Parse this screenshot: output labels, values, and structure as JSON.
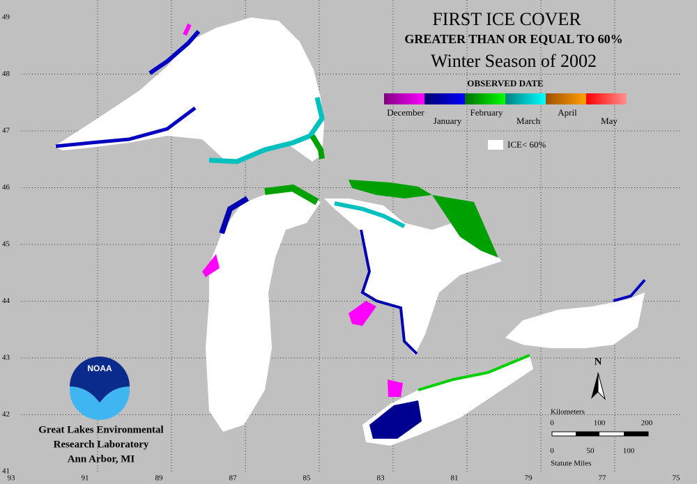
{
  "title": {
    "line1": "FIRST ICE COVER",
    "line2": "GREATER THAN OR EQUAL TO 60%",
    "line3": "Winter Season of 2002"
  },
  "legend": {
    "title": "OBSERVED DATE",
    "months": [
      {
        "label": "December",
        "from": "#800080",
        "to": "#ff00ff"
      },
      {
        "label": "January",
        "from": "#000070",
        "to": "#0000ff"
      },
      {
        "label": "February",
        "from": "#007000",
        "to": "#00ff00"
      },
      {
        "label": "March",
        "from": "#008080",
        "to": "#00ffff"
      },
      {
        "label": "April",
        "from": "#a05000",
        "to": "#ffa000"
      },
      {
        "label": "May",
        "from": "#ff0000",
        "to": "#ff9090"
      }
    ],
    "ice_label": "ICE< 60%"
  },
  "scale": {
    "title": "Kilometers",
    "km_ticks": [
      "0",
      "100",
      "200"
    ],
    "mile_ticks": [
      "0",
      "50",
      "100"
    ],
    "miles_label": "Statute Miles"
  },
  "north": "N",
  "logo": "NOAA",
  "institution": [
    "Great Lakes Environmental",
    "Research Laboratory",
    "Ann Arbor, MI"
  ],
  "longitudes": [
    "93",
    "91",
    "89",
    "87",
    "85",
    "83",
    "81",
    "79",
    "77",
    "75"
  ],
  "latitudes": [
    "49",
    "48",
    "47",
    "46",
    "45",
    "44",
    "43",
    "42",
    "41"
  ]
}
